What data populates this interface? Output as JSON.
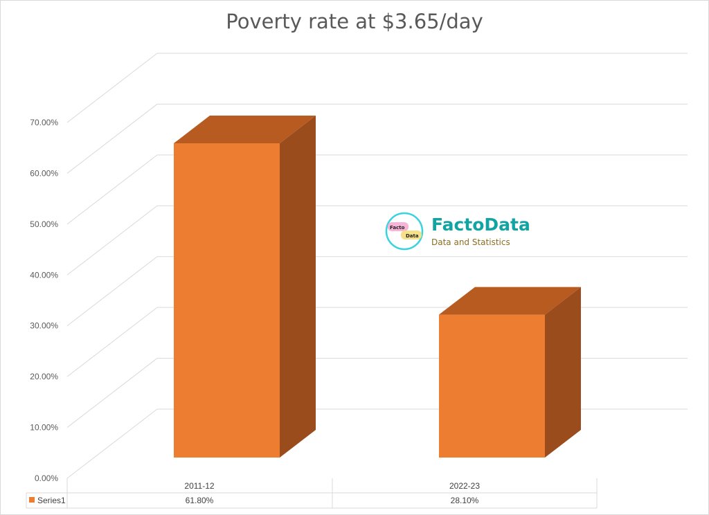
{
  "chart_data": {
    "type": "bar",
    "title": "Poverty rate at $3.65/day",
    "categories": [
      "2011-12",
      "2022-23"
    ],
    "series": [
      {
        "name": "Series1",
        "values": [
          61.8,
          28.1
        ],
        "labels": [
          "61.80%",
          "28.10%"
        ]
      }
    ],
    "ylim": [
      0,
      70
    ],
    "yticks": [
      "0.00%",
      "10.00%",
      "20.00%",
      "30.00%",
      "40.00%",
      "50.00%",
      "60.00%",
      "70.00%"
    ],
    "grid": true,
    "three_d": true,
    "data_table": true,
    "colors": {
      "front": "#ed7d31",
      "top": "#b85b20",
      "side": "#9a4c1c"
    }
  },
  "watermark": {
    "brand": "FactoData",
    "tagline": "Data and Statistics",
    "badge_top": "Facto",
    "badge_bottom": "Data"
  }
}
